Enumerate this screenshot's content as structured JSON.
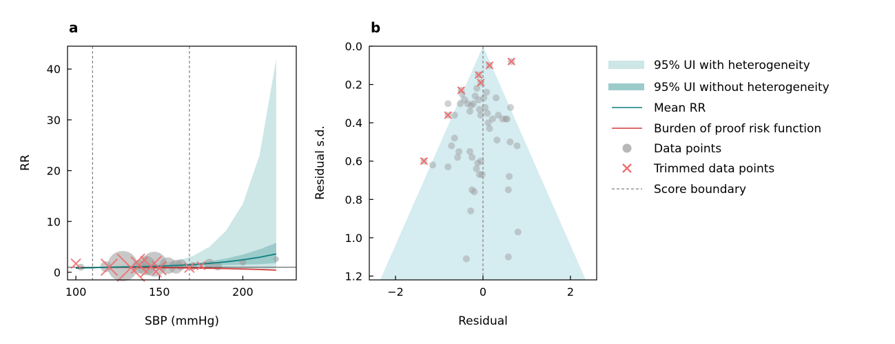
{
  "colors": {
    "ui_with_het": "#cde6e6",
    "ui_without_het": "#9ccbcb",
    "mean_line": "#0f7f7f",
    "bop_line": "#d23b3b",
    "data_point": "#9a9a9a",
    "trimmed": "#ee6e6e",
    "funnel": "#d5ecf0",
    "boundary": "#7f7f7f"
  },
  "legend": {
    "items": [
      {
        "label": "95% UI with heterogeneity"
      },
      {
        "label": "95% UI without heterogeneity"
      },
      {
        "label": "Mean RR"
      },
      {
        "label": "Burden of proof risk function"
      },
      {
        "label": "Data points"
      },
      {
        "label": "Trimmed data points"
      },
      {
        "label": "Score boundary"
      }
    ]
  },
  "chart_data": [
    {
      "panel_label": "a",
      "type": "line",
      "xlabel": "SBP (mmHg)",
      "ylabel": "RR",
      "xlim": [
        95,
        232
      ],
      "ylim": [
        -1.5,
        44.5
      ],
      "xticks": [
        100,
        150,
        200
      ],
      "yticks": [
        0,
        10,
        20,
        30,
        40
      ],
      "reference_line_y": 1,
      "score_boundaries_x": [
        110,
        168
      ],
      "x": [
        100,
        110,
        120,
        130,
        140,
        150,
        160,
        170,
        180,
        190,
        200,
        210,
        220
      ],
      "series": [
        {
          "name": "Mean RR",
          "values": [
            0.8,
            0.9,
            1.0,
            1.05,
            1.1,
            1.2,
            1.35,
            1.5,
            1.75,
            2.05,
            2.45,
            2.95,
            3.6
          ]
        },
        {
          "name": "Burden of proof risk function",
          "values": [
            0.8,
            0.92,
            0.96,
            0.95,
            0.93,
            0.9,
            0.87,
            0.83,
            0.78,
            0.72,
            0.65,
            0.55,
            0.42
          ]
        },
        {
          "name": "95% UI without heterogeneity lower",
          "values": [
            0.7,
            0.85,
            0.95,
            1.0,
            1.05,
            1.1,
            1.15,
            1.2,
            1.3,
            1.4,
            1.5,
            1.6,
            1.8
          ]
        },
        {
          "name": "95% UI without heterogeneity upper",
          "values": [
            0.9,
            0.95,
            1.05,
            1.1,
            1.2,
            1.3,
            1.5,
            1.75,
            2.15,
            2.7,
            3.5,
            4.5,
            5.8
          ]
        },
        {
          "name": "95% UI with heterogeneity lower",
          "values": [
            0.7,
            0.8,
            0.85,
            0.85,
            0.85,
            0.85,
            0.85,
            0.85,
            0.85,
            0.8,
            0.75,
            0.7,
            0.6
          ]
        },
        {
          "name": "95% UI with heterogeneity upper",
          "values": [
            1.0,
            1.1,
            1.2,
            1.3,
            1.45,
            1.7,
            2.2,
            3.2,
            5.0,
            8.2,
            13.5,
            23.0,
            42.0
          ]
        }
      ],
      "data_points": [
        {
          "x": 103,
          "y": 1.0,
          "size": 5
        },
        {
          "x": 118,
          "y": 1.1,
          "size": 8
        },
        {
          "x": 128,
          "y": 1.2,
          "size": 22
        },
        {
          "x": 138,
          "y": 1.1,
          "size": 10
        },
        {
          "x": 142,
          "y": 1.3,
          "size": 14
        },
        {
          "x": 147,
          "y": 1.6,
          "size": 18
        },
        {
          "x": 155,
          "y": 1.3,
          "size": 12
        },
        {
          "x": 160,
          "y": 1.1,
          "size": 10
        },
        {
          "x": 163,
          "y": 1.5,
          "size": 8
        },
        {
          "x": 170,
          "y": 1.2,
          "size": 6
        },
        {
          "x": 180,
          "y": 1.7,
          "size": 7
        },
        {
          "x": 185,
          "y": 1.2,
          "size": 6
        },
        {
          "x": 200,
          "y": 2.0,
          "size": 5
        },
        {
          "x": 220,
          "y": 2.6,
          "size": 4
        }
      ],
      "trimmed_points": [
        {
          "x": 100,
          "y": 1.7,
          "size": 7
        },
        {
          "x": 120,
          "y": 1.0,
          "size": 12
        },
        {
          "x": 133,
          "y": 0.9,
          "size": 20
        },
        {
          "x": 138,
          "y": 1.4,
          "size": 12
        },
        {
          "x": 145,
          "y": 1.1,
          "size": 15
        },
        {
          "x": 150,
          "y": 0.8,
          "size": 10
        },
        {
          "x": 168,
          "y": 0.9,
          "size": 7
        },
        {
          "x": 175,
          "y": 1.3,
          "size": 6
        }
      ]
    },
    {
      "panel_label": "b",
      "type": "scatter",
      "xlabel": "Residual",
      "ylabel": "Residual s.d.",
      "xlim": [
        -2.6,
        2.6
      ],
      "ylim": [
        1.22,
        0.0
      ],
      "xticks": [
        -2,
        0,
        2
      ],
      "yticks": [
        0.0,
        0.2,
        0.4,
        0.6,
        0.8,
        1.0,
        1.2
      ],
      "ytick_labels": [
        "0.0",
        "0.2",
        "0.4",
        "0.6",
        "0.8",
        "1.0",
        "1.2"
      ],
      "funnel": {
        "apex": [
          0,
          0
        ],
        "base_half_width": 2.35,
        "base_sd": 1.22
      },
      "data_points": [
        {
          "x": -0.8,
          "y": 0.3
        },
        {
          "x": -0.65,
          "y": 0.36
        },
        {
          "x": -0.52,
          "y": 0.3
        },
        {
          "x": -0.48,
          "y": 0.25
        },
        {
          "x": -0.42,
          "y": 0.28
        },
        {
          "x": -0.35,
          "y": 0.3
        },
        {
          "x": -0.3,
          "y": 0.34
        },
        {
          "x": -0.27,
          "y": 0.31
        },
        {
          "x": -0.22,
          "y": 0.3
        },
        {
          "x": -0.18,
          "y": 0.26
        },
        {
          "x": -0.14,
          "y": 0.22
        },
        {
          "x": -0.1,
          "y": 0.28
        },
        {
          "x": -0.08,
          "y": 0.33
        },
        {
          "x": -0.05,
          "y": 0.36
        },
        {
          "x": 0.02,
          "y": 0.27
        },
        {
          "x": 0.05,
          "y": 0.32
        },
        {
          "x": 0.08,
          "y": 0.24
        },
        {
          "x": 0.1,
          "y": 0.35
        },
        {
          "x": 0.12,
          "y": 0.4
        },
        {
          "x": 0.15,
          "y": 0.43
        },
        {
          "x": 0.22,
          "y": 0.38
        },
        {
          "x": 0.3,
          "y": 0.27
        },
        {
          "x": 0.35,
          "y": 0.36
        },
        {
          "x": 0.45,
          "y": 0.38
        },
        {
          "x": 0.52,
          "y": 0.38
        },
        {
          "x": 0.55,
          "y": 0.38
        },
        {
          "x": 0.63,
          "y": 0.32
        },
        {
          "x": -0.55,
          "y": 0.55
        },
        {
          "x": -0.58,
          "y": 0.58
        },
        {
          "x": -0.65,
          "y": 0.48
        },
        {
          "x": -0.72,
          "y": 0.52
        },
        {
          "x": -0.3,
          "y": 0.55
        },
        {
          "x": -0.25,
          "y": 0.58
        },
        {
          "x": -0.12,
          "y": 0.61
        },
        {
          "x": -0.05,
          "y": 0.6
        },
        {
          "x": -0.15,
          "y": 0.64
        },
        {
          "x": -0.08,
          "y": 0.67
        },
        {
          "x": -0.02,
          "y": 0.67
        },
        {
          "x": 0.32,
          "y": 0.49
        },
        {
          "x": 0.62,
          "y": 0.5
        },
        {
          "x": 0.78,
          "y": 0.52
        },
        {
          "x": 0.6,
          "y": 0.68
        },
        {
          "x": 0.58,
          "y": 0.75
        },
        {
          "x": -0.25,
          "y": 0.75
        },
        {
          "x": -0.2,
          "y": 0.76
        },
        {
          "x": -0.28,
          "y": 0.86
        },
        {
          "x": -0.8,
          "y": 0.63
        },
        {
          "x": -1.15,
          "y": 0.62
        },
        {
          "x": 0.8,
          "y": 0.97
        },
        {
          "x": -0.38,
          "y": 1.11
        },
        {
          "x": 0.58,
          "y": 1.1
        }
      ],
      "trimmed_points": [
        {
          "x": 0.65,
          "y": 0.08
        },
        {
          "x": 0.15,
          "y": 0.1
        },
        {
          "x": -0.1,
          "y": 0.15
        },
        {
          "x": -0.05,
          "y": 0.19
        },
        {
          "x": -0.5,
          "y": 0.23
        },
        {
          "x": -0.8,
          "y": 0.36
        },
        {
          "x": -1.35,
          "y": 0.6
        }
      ]
    }
  ]
}
